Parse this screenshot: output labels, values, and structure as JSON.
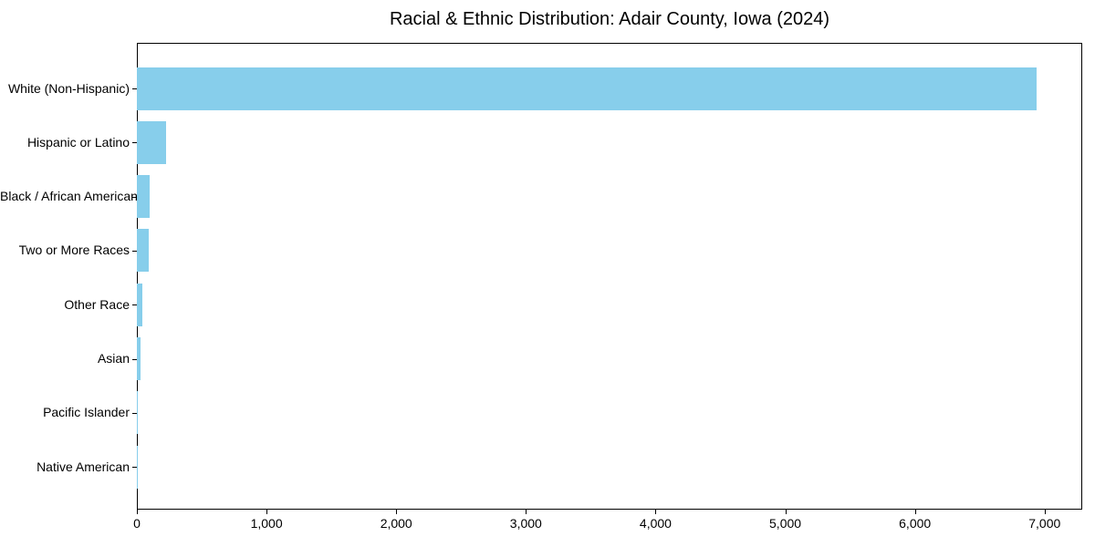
{
  "chart_data": {
    "type": "bar",
    "orientation": "horizontal",
    "title": "Racial & Ethnic Distribution: Adair County, Iowa (2024)",
    "xlabel": "",
    "ylabel": "",
    "categories": [
      "White (Non-Hispanic)",
      "Hispanic or Latino",
      "Black / African American",
      "Two or More Races",
      "Other Race",
      "Asian",
      "Pacific Islander",
      "Native American"
    ],
    "values": [
      6940,
      228,
      100,
      94,
      44,
      28,
      4,
      2
    ],
    "xlim": [
      0,
      7290
    ],
    "x_ticks": [
      0,
      1000,
      2000,
      3000,
      4000,
      5000,
      6000,
      7000
    ],
    "x_tick_labels": [
      "0",
      "1,000",
      "2,000",
      "3,000",
      "4,000",
      "5,000",
      "6,000",
      "7,000"
    ],
    "bar_color": "#87CEEB",
    "axis_color": "#000000",
    "text_color": "#000000",
    "background_color": "#ffffff",
    "grid": false,
    "legend": null
  }
}
